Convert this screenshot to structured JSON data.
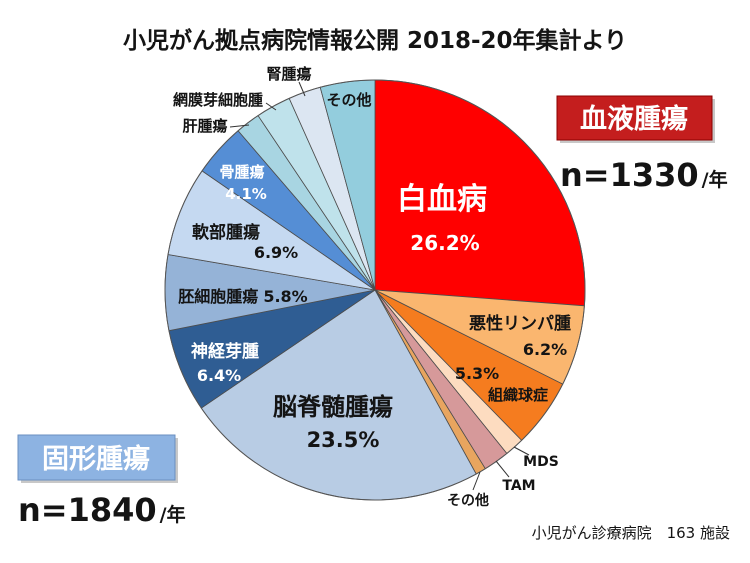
{
  "footer": "小児がん診療病院　163 施設",
  "chart_data": {
    "type": "pie",
    "title": "小児がん拠点病院情報公開 2018-20年集計より",
    "groups": [
      {
        "name": "血液腫瘍",
        "count": "n=1330",
        "unit": "/年",
        "color": "#c41e1e",
        "slices": [
          {
            "label": "白血病",
            "value": 26.2,
            "value_label": "26.2%",
            "color": "#ff0000"
          },
          {
            "label": "悪性リンパ腫",
            "value": 6.2,
            "value_label": "6.2%",
            "color": "#fab66f"
          },
          {
            "label": "組織球症",
            "value": 5.3,
            "value_label": "5.3%",
            "color": "#f57c1f"
          },
          {
            "label": "MDS",
            "value": 1.5,
            "color": "#fddcc0"
          },
          {
            "label": "TAM",
            "value": 2.0,
            "color": "#d6999a"
          },
          {
            "label": "その他",
            "value": 0.8,
            "color": "#e8a55f"
          }
        ]
      },
      {
        "name": "固形腫瘍",
        "count": "n=1840",
        "unit": "/年",
        "color": "#8db3e2",
        "slices": [
          {
            "label": "脳脊髄腫瘍",
            "value": 23.5,
            "value_label": "23.5%",
            "color": "#b8cce4"
          },
          {
            "label": "神経芽腫",
            "value": 6.4,
            "value_label": "6.4%",
            "color": "#2f5d93"
          },
          {
            "label": "胚細胞腫瘍",
            "value": 5.8,
            "value_label": "5.8%",
            "color": "#95b3d7"
          },
          {
            "label": "軟部腫瘍",
            "value": 6.9,
            "value_label": "6.9%",
            "color": "#c5d9f1"
          },
          {
            "label": "骨腫瘍",
            "value": 4.1,
            "value_label": "4.1%",
            "color": "#558ed5"
          },
          {
            "label": "肝腫瘍",
            "value": 1.9,
            "color": "#a8d5e2"
          },
          {
            "label": "網膜芽細胞腫",
            "value": 2.7,
            "color": "#bfe2eb"
          },
          {
            "label": "腎腫瘍",
            "value": 2.5,
            "color": "#dce6f2"
          },
          {
            "label": "その他",
            "value": 4.2,
            "color": "#93cddd"
          }
        ]
      }
    ]
  }
}
